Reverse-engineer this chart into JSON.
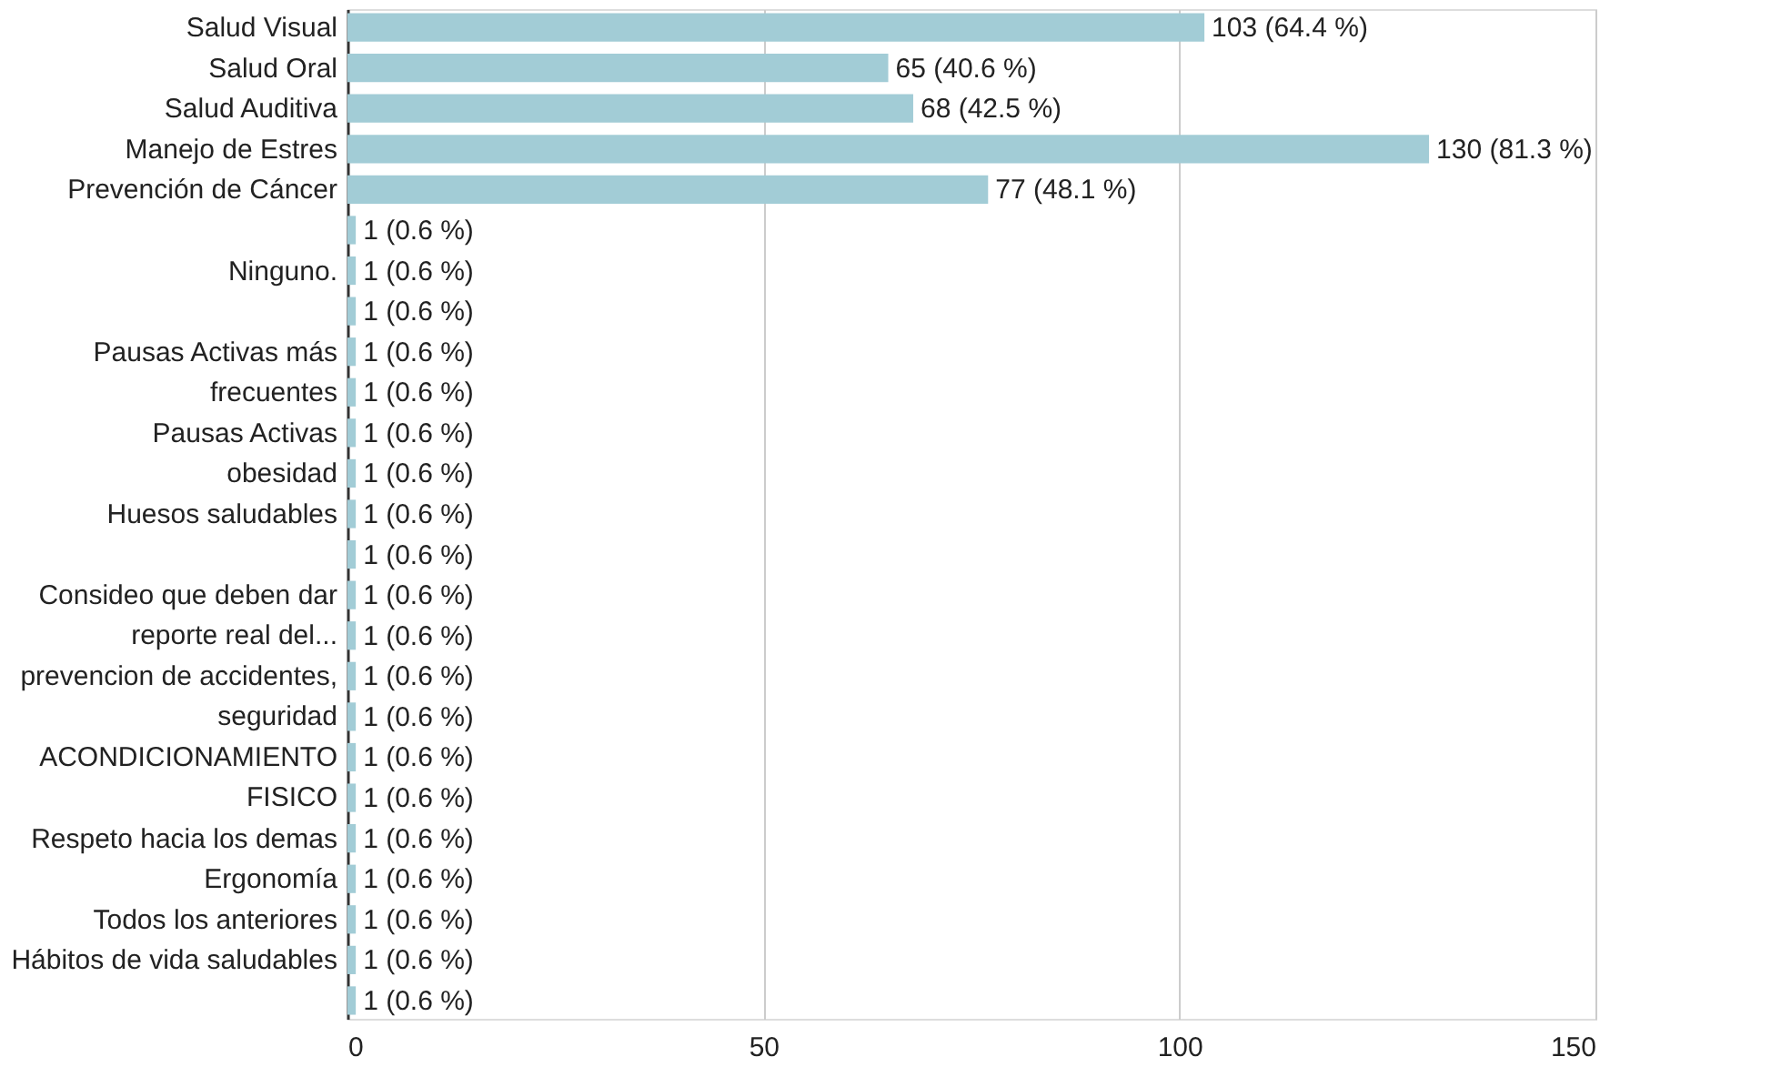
{
  "chart_data": {
    "type": "bar",
    "orientation": "horizontal",
    "categories": [
      "Salud Visual",
      "Salud Oral",
      "Salud Auditiva",
      "Manejo de Estres",
      "Prevención de Cáncer",
      null,
      "Ninguno.",
      null,
      "Pausas Activas más\nfrecuentes",
      null,
      "Pausas Activas",
      "obesidad",
      "Huesos saludables",
      null,
      "Consideo que deben dar\nreporte real del...",
      null,
      "prevencion de accidentes,\nseguridad",
      null,
      "ACONDICIONAMIENTO\nFISICO",
      null,
      "Respeto hacia los demas",
      "Ergonomía",
      "Todos los anteriores",
      "Hábitos de vida saludables",
      null
    ],
    "values": [
      103,
      65,
      68,
      130,
      77,
      1,
      1,
      1,
      1,
      1,
      1,
      1,
      1,
      1,
      1,
      1,
      1,
      1,
      1,
      1,
      1,
      1,
      1,
      1,
      1
    ],
    "value_labels": [
      "103 (64.4 %)",
      "65 (40.6 %)",
      "68 (42.5 %)",
      "130 (81.3 %)",
      "77 (48.1 %)",
      "1 (0.6 %)",
      "1 (0.6 %)",
      "1 (0.6 %)",
      "1 (0.6 %)",
      "1 (0.6 %)",
      "1 (0.6 %)",
      "1 (0.6 %)",
      "1 (0.6 %)",
      "1 (0.6 %)",
      "1 (0.6 %)",
      "1 (0.6 %)",
      "1 (0.6 %)",
      "1 (0.6 %)",
      "1 (0.6 %)",
      "1 (0.6 %)",
      "1 (0.6 %)",
      "1 (0.6 %)",
      "1 (0.6 %)",
      "1 (0.6 %)",
      "1 (0.6 %)"
    ],
    "color": "#a2ccd6",
    "xlim": [
      0,
      150
    ],
    "xticks": [
      0,
      50,
      100,
      150
    ],
    "grid": "x"
  }
}
